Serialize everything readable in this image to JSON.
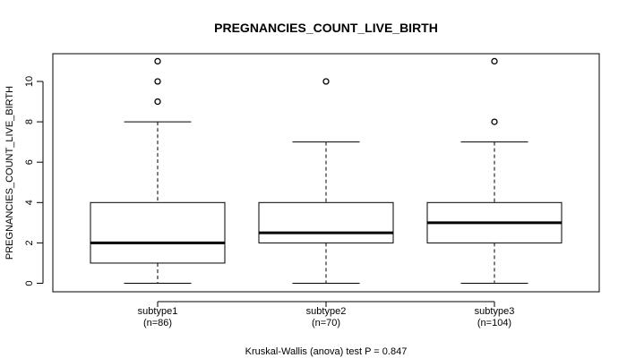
{
  "chart_data": {
    "type": "box",
    "title": "PREGNANCIES_COUNT_LIVE_BIRTH",
    "ylabel": "PREGNANCIES_COUNT_LIVE_BIRTH",
    "xlabel": "Kruskal-Wallis (anova) test P = 0.847",
    "ylim": [
      -0.5,
      11.5
    ],
    "yticks": [
      0,
      2,
      4,
      6,
      8,
      10
    ],
    "groups": [
      {
        "name": "subtype1",
        "n_label": "(n=86)",
        "whisker_low": 0,
        "q1": 1,
        "median": 2,
        "q3": 4,
        "whisker_high": 8,
        "outliers": [
          9,
          10,
          11
        ]
      },
      {
        "name": "subtype2",
        "n_label": "(n=70)",
        "whisker_low": 0,
        "q1": 2,
        "median": 2.5,
        "q3": 4,
        "whisker_high": 7,
        "outliers": [
          10
        ]
      },
      {
        "name": "subtype3",
        "n_label": "(n=104)",
        "whisker_low": 0,
        "q1": 2,
        "median": 3,
        "q3": 4,
        "whisker_high": 7,
        "outliers": [
          8,
          11
        ]
      }
    ]
  }
}
